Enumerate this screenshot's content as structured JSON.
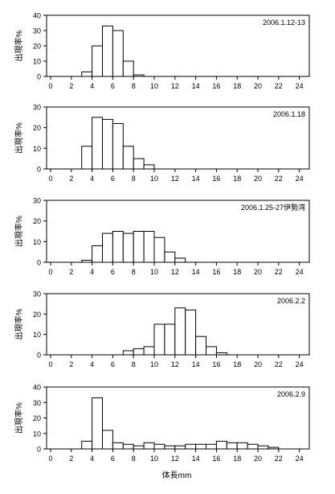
{
  "figure": {
    "ylabel": "出現率%",
    "xlabel": "体長mm"
  },
  "chart_data": [
    {
      "type": "bar",
      "label": "2006.1.12-13",
      "ylim": [
        0,
        40
      ],
      "yticks": [
        0,
        10,
        20,
        30,
        40
      ],
      "xlim": [
        0,
        25
      ],
      "xticks": [
        0,
        2,
        4,
        6,
        8,
        10,
        12,
        14,
        16,
        18,
        20,
        22,
        24
      ],
      "bin_width": 1,
      "bins": [
        3,
        4,
        5,
        6,
        7,
        8
      ],
      "values": [
        3,
        20,
        33,
        30,
        10,
        1
      ]
    },
    {
      "type": "bar",
      "label": "2006.1.18",
      "ylim": [
        0,
        30
      ],
      "yticks": [
        0,
        10,
        20,
        30
      ],
      "xlim": [
        0,
        25
      ],
      "xticks": [
        0,
        2,
        4,
        6,
        8,
        10,
        12,
        14,
        16,
        18,
        20,
        22,
        24
      ],
      "bin_width": 1,
      "bins": [
        3,
        4,
        5,
        6,
        7,
        8,
        9
      ],
      "values": [
        11,
        25,
        24,
        22,
        11,
        5,
        2
      ]
    },
    {
      "type": "bar",
      "label": "2006.1.25-27伊勢湾",
      "ylim": [
        0,
        30
      ],
      "yticks": [
        0,
        10,
        20,
        30
      ],
      "xlim": [
        0,
        25
      ],
      "xticks": [
        0,
        2,
        4,
        6,
        8,
        10,
        12,
        14,
        16,
        18,
        20,
        22,
        24
      ],
      "bin_width": 1,
      "bins": [
        3,
        4,
        5,
        6,
        7,
        8,
        9,
        10,
        11,
        12
      ],
      "values": [
        1,
        8,
        14,
        15,
        14,
        15,
        15,
        12,
        5,
        2
      ]
    },
    {
      "type": "bar",
      "label": "2006.2.2",
      "ylim": [
        0,
        30
      ],
      "yticks": [
        0,
        10,
        20,
        30
      ],
      "xlim": [
        0,
        25
      ],
      "xticks": [
        0,
        2,
        4,
        6,
        8,
        10,
        12,
        14,
        16,
        18,
        20,
        22,
        24
      ],
      "bin_width": 1,
      "bins": [
        7,
        8,
        9,
        10,
        11,
        12,
        13,
        14,
        15,
        16
      ],
      "values": [
        2,
        3,
        4,
        15,
        15,
        23,
        22,
        9,
        4,
        1
      ]
    },
    {
      "type": "bar",
      "label": "2006.2.9",
      "ylim": [
        0,
        40
      ],
      "yticks": [
        0,
        10,
        20,
        30,
        40
      ],
      "xlim": [
        0,
        25
      ],
      "xticks": [
        0,
        2,
        4,
        6,
        8,
        10,
        12,
        14,
        16,
        18,
        20,
        22,
        24
      ],
      "bin_width": 1,
      "bins": [
        3,
        4,
        5,
        6,
        7,
        8,
        9,
        10,
        11,
        12,
        13,
        14,
        15,
        16,
        17,
        18,
        19,
        20,
        21
      ],
      "values": [
        5,
        33,
        12,
        4,
        3,
        2,
        4,
        3,
        2,
        2,
        3,
        3,
        3,
        5,
        4,
        4,
        3,
        2,
        1
      ]
    }
  ]
}
